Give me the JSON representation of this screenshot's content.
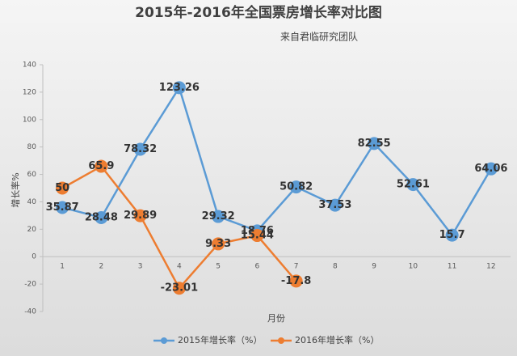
{
  "chart_data": {
    "type": "line",
    "title": "2015年-2016年全国票房增长率对比图",
    "subtitle": "来自君临研究团队",
    "y_label": "增长率%",
    "x_label": "月份",
    "categories": [
      "1",
      "2",
      "3",
      "4",
      "5",
      "6",
      "7",
      "8",
      "9",
      "10",
      "11",
      "12"
    ],
    "series": [
      {
        "name": "2015年增长率（%）",
        "color": "#5b9bd5",
        "values": [
          35.87,
          28.48,
          78.32,
          123.26,
          29.32,
          18.76,
          50.82,
          37.53,
          82.55,
          52.61,
          15.7,
          64.06
        ]
      },
      {
        "name": "2016年增长率（%）",
        "color": "#ed7d31",
        "values": [
          50,
          65.9,
          29.89,
          -23.01,
          9.33,
          15.44,
          -17.8,
          null,
          null,
          null,
          null,
          null
        ]
      }
    ],
    "ylim": [
      -40,
      140
    ],
    "yticks": [
      -40,
      -20,
      0,
      20,
      40,
      60,
      80,
      100,
      120,
      140
    ],
    "grid": false,
    "legend": "bottom"
  }
}
